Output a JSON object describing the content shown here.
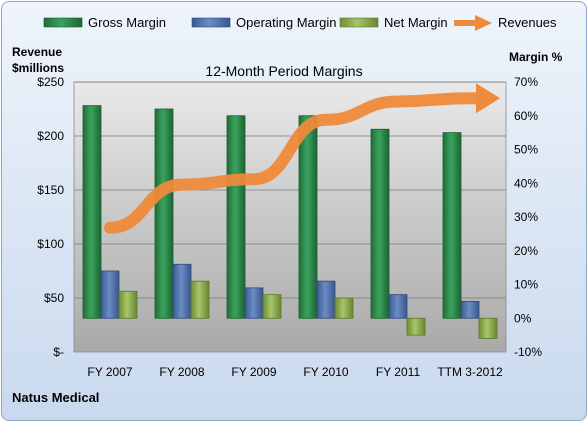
{
  "chart_data": {
    "type": "bar",
    "title": "12-Month Period Margins",
    "company": "Natus Medical",
    "categories": [
      "FY 2007",
      "FY 2008",
      "FY 2009",
      "FY 2010",
      "FY 2011",
      "TTM 3-2012"
    ],
    "left_axis": {
      "label_line1": "Revenue",
      "label_line2": "$millions",
      "range": [
        0,
        250
      ],
      "tick_values": [
        0,
        50,
        100,
        150,
        200,
        250
      ],
      "tick_labels": [
        "$-",
        "$50",
        "$100",
        "$150",
        "$200",
        "$250"
      ]
    },
    "right_axis": {
      "label": "Margin %",
      "range": [
        -10,
        70
      ],
      "tick_values": [
        -10,
        0,
        10,
        20,
        30,
        40,
        50,
        60,
        70
      ],
      "tick_labels": [
        "-10%",
        "0%",
        "10%",
        "20%",
        "30%",
        "40%",
        "50%",
        "60%",
        "70%"
      ]
    },
    "series": [
      {
        "name": "Gross Margin",
        "axis": "right",
        "type": "bar",
        "color": "#2e8b4e",
        "values": [
          63,
          62,
          60,
          60,
          56,
          55
        ]
      },
      {
        "name": "Operating Margin",
        "axis": "right",
        "type": "bar",
        "color": "#4f6fa8",
        "values": [
          14,
          16,
          9,
          11,
          7,
          5
        ]
      },
      {
        "name": "Net Margin",
        "axis": "right",
        "type": "bar",
        "color": "#8aab4f",
        "values": [
          8,
          11,
          7,
          6,
          -5,
          -6
        ]
      },
      {
        "name": "Revenues",
        "axis": "left",
        "type": "line",
        "color": "#ee8a3a",
        "values": [
          115,
          155,
          160,
          215,
          232,
          235
        ]
      }
    ],
    "grid": true,
    "legend_position": "top"
  }
}
